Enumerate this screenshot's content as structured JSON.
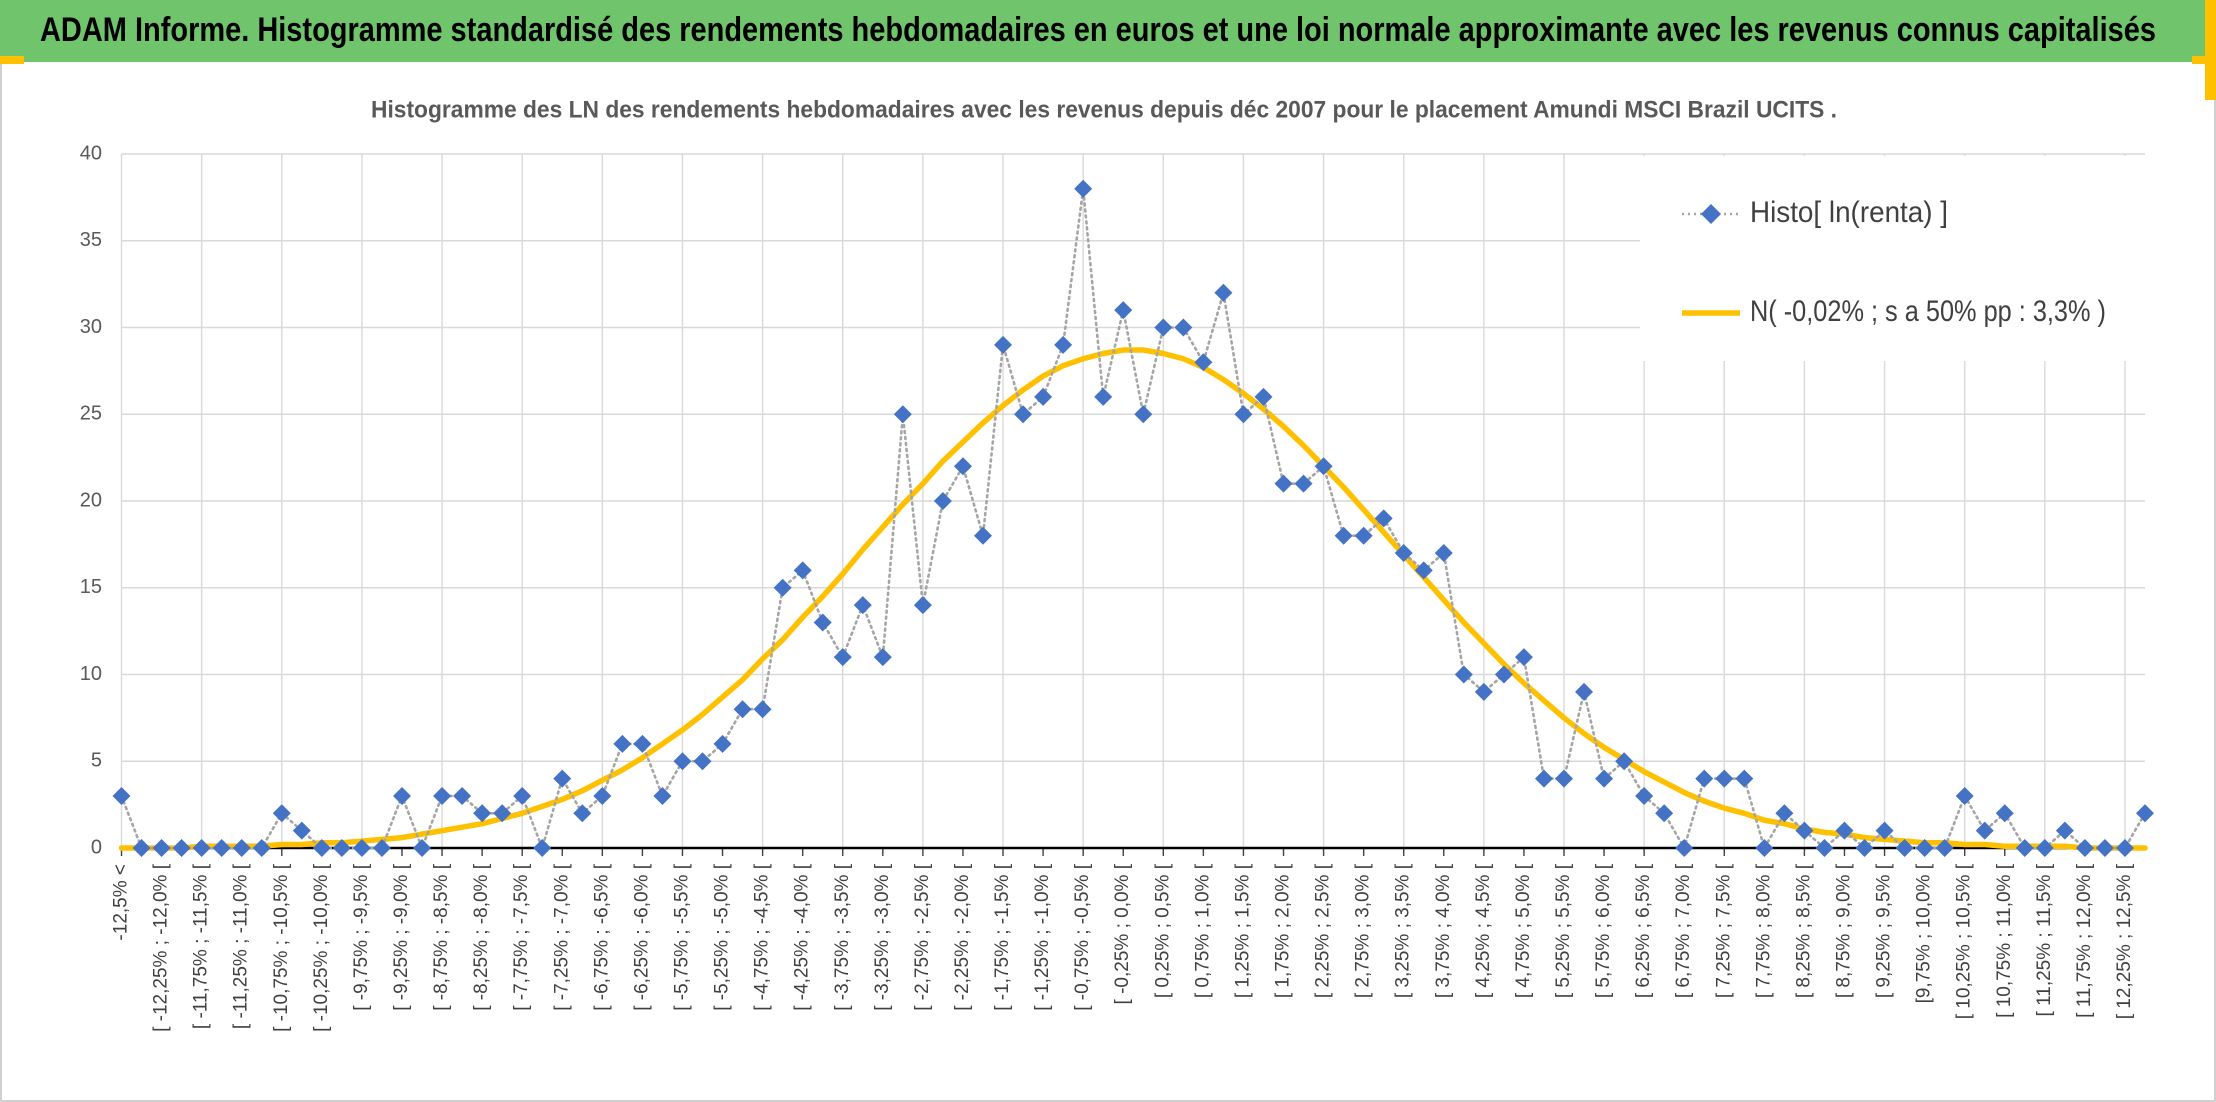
{
  "chart_data": {
    "type": "line",
    "title": "ADAM Informe. Histogramme standardisé des rendements hebdomadaires en euros et une loi normale approximante avec les revenus connus capitalisés",
    "subtitle": "Histogramme des LN des rendements hebdomadaires avec les revenus depuis déc 2007 pour le placement Amundi MSCI Brazil UCITS .",
    "categories": [
      "-12,5% <",
      null,
      "[ -12,25% ; -12,0% [",
      null,
      "[ -11,75% ; -11,5% [",
      null,
      "[ -11,25% ; -11,0% [",
      null,
      "[ -10,75% ; -10,5% [",
      null,
      "[ -10,25% ; -10,0% [",
      null,
      "[ -9,75% ; -9,5% [",
      null,
      "[ -9,25% ; -9,0% [",
      null,
      "[ -8,75% ; -8,5% [",
      null,
      "[ -8,25% ; -8,0% [",
      null,
      "[ -7,75% ; -7,5% [",
      null,
      "[ -7,25% ; -7,0% [",
      null,
      "[ -6,75% ; -6,5% [",
      null,
      "[ -6,25% ; -6,0% [",
      null,
      "[ -5,75% ; -5,5% [",
      null,
      "[ -5,25% ; -5,0% [",
      null,
      "[ -4,75% ; -4,5% [",
      null,
      "[ -4,25% ; -4,0% [",
      null,
      "[ -3,75% ; -3,5% [",
      null,
      "[ -3,25% ; -3,0% [",
      null,
      "[ -2,75% ; -2,5% [",
      null,
      "[ -2,25% ; -2,0% [",
      null,
      "[ -1,75% ; -1,5% [",
      null,
      "[ -1,25% ; -1,0% [",
      null,
      "[ -0,75% ; -0,5% [",
      null,
      "[ -0,25% ; 0,0% [",
      null,
      "[ 0,25% ; 0,5% [",
      null,
      "[ 0,75% ; 1,0% [",
      null,
      "[ 1,25% ; 1,5% [",
      null,
      "[ 1,75% ; 2,0% [",
      null,
      "[ 2,25% ; 2,5% [",
      null,
      "[ 2,75% ; 3,0% [",
      null,
      "[ 3,25% ; 3,5% [",
      null,
      "[ 3,75% ; 4,0% [",
      null,
      "[ 4,25% ; 4,5% [",
      null,
      "[ 4,75% ; 5,0% [",
      null,
      "[ 5,25% ; 5,5% [",
      null,
      "[ 5,75% ; 6,0% [",
      null,
      "[ 6,25% ; 6,5% [",
      null,
      "[ 6,75% ; 7,0% [",
      null,
      "[ 7,25% ; 7,5% [",
      null,
      "[ 7,75% ; 8,0% [",
      null,
      "[ 8,25% ; 8,5% [",
      null,
      "[ 8,75% ; 9,0% [",
      null,
      "[ 9,25% ; 9,5% [",
      null,
      "[9,75% ; 10,0% [",
      null,
      "[ 10,25% ; 10,5% [",
      null,
      "[ 10,75% ; 11,0% [",
      null,
      "[ 11,25% ; 11,5% [",
      null,
      "[ 11,75% ; 12,0% [",
      null,
      "[ 12,25% ; 12,5% [",
      null
    ],
    "series": [
      {
        "name": "Histo[ ln(renta) ]",
        "color": "#4472c4",
        "line_color": "#a5a5a5",
        "marker": "diamond",
        "dash": "dotted",
        "values": [
          3,
          0,
          0,
          0,
          0,
          0,
          0,
          0,
          2,
          1,
          0,
          0,
          0,
          0,
          3,
          0,
          3,
          3,
          2,
          2,
          3,
          0,
          4,
          2,
          3,
          6,
          6,
          3,
          5,
          5,
          6,
          8,
          8,
          15,
          16,
          13,
          11,
          14,
          11,
          25,
          14,
          20,
          22,
          18,
          29,
          25,
          26,
          29,
          38,
          26,
          31,
          25,
          30,
          30,
          28,
          32,
          25,
          26,
          21,
          21,
          22,
          18,
          18,
          19,
          17,
          16,
          17,
          10,
          9,
          10,
          11,
          4,
          4,
          9,
          4,
          5,
          3,
          2,
          0,
          4,
          4,
          4,
          0,
          2,
          1,
          0,
          1,
          0,
          1,
          0,
          0,
          0,
          3,
          1,
          2,
          0,
          0,
          1,
          0,
          0,
          0,
          2
        ]
      },
      {
        "name": "N( -0,02% ; s a 50% pp : 3,3% )",
        "color": "#ffc000",
        "marker": "none",
        "dash": "solid",
        "values": [
          0.0,
          0.0,
          0.0,
          0.0,
          0.1,
          0.1,
          0.1,
          0.1,
          0.2,
          0.2,
          0.3,
          0.3,
          0.4,
          0.5,
          0.6,
          0.8,
          1.0,
          1.2,
          1.4,
          1.7,
          2.0,
          2.4,
          2.8,
          3.3,
          3.9,
          4.5,
          5.2,
          6.0,
          6.8,
          7.7,
          8.7,
          9.7,
          10.9,
          12.0,
          13.3,
          14.5,
          15.8,
          17.2,
          18.5,
          19.8,
          21.0,
          22.3,
          23.4,
          24.5,
          25.5,
          26.4,
          27.2,
          27.8,
          28.2,
          28.5,
          28.7,
          28.7,
          28.5,
          28.2,
          27.7,
          27.0,
          26.2,
          25.3,
          24.3,
          23.2,
          22.0,
          20.8,
          19.5,
          18.2,
          16.9,
          15.6,
          14.3,
          13.0,
          11.8,
          10.6,
          9.5,
          8.5,
          7.5,
          6.6,
          5.8,
          5.1,
          4.4,
          3.8,
          3.2,
          2.7,
          2.3,
          2.0,
          1.6,
          1.4,
          1.1,
          0.9,
          0.8,
          0.6,
          0.5,
          0.4,
          0.3,
          0.3,
          0.2,
          0.2,
          0.1,
          0.1,
          0.1,
          0.1,
          0.0,
          0.0,
          0.0,
          0.0
        ]
      }
    ],
    "ylim": [
      0,
      40
    ],
    "yticks": [
      0,
      5,
      10,
      15,
      20,
      25,
      30,
      35,
      40
    ],
    "grid": true,
    "legend": "top-right"
  }
}
